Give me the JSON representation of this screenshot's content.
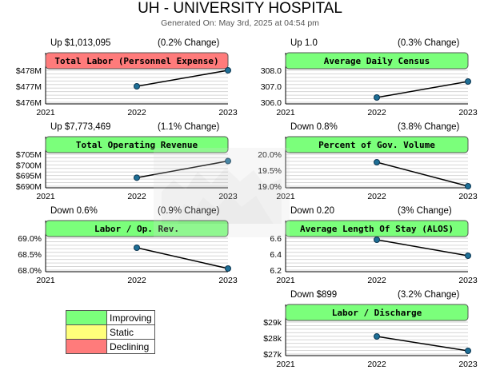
{
  "header": {
    "title": "UH - UNIVERSITY HOSPITAL",
    "generated": "Generated On: May 3rd, 2025 at 04:54 pm"
  },
  "colors": {
    "improving": "#7bff7b",
    "static": "#ffff7b",
    "declining": "#ff7b7b"
  },
  "legend": [
    {
      "label": "Improving",
      "color": "#7bff7b"
    },
    {
      "label": "Static",
      "color": "#ffff7b"
    },
    {
      "label": "Declining",
      "color": "#ff7b7b"
    }
  ],
  "chart_data": [
    {
      "type": "line",
      "title": "Total Labor (Personnel Expense)",
      "status": "declining",
      "change": "Up $1,013,095",
      "change_pct": "(0.2% Change)",
      "x": [
        "2021",
        "2022",
        "2023"
      ],
      "values": [
        null,
        477.0,
        478.0
      ],
      "yticks": [
        "$478M",
        "$477M",
        "$476M"
      ],
      "ytick_values": [
        478,
        477,
        476
      ],
      "ylim": [
        476,
        478
      ]
    },
    {
      "type": "line",
      "title": "Average Daily Census",
      "status": "improving",
      "change": "Up 1.0",
      "change_pct": "(0.3% Change)",
      "x": [
        "2021",
        "2022",
        "2023"
      ],
      "values": [
        null,
        306.3,
        307.3
      ],
      "yticks": [
        "308.0",
        "307.0",
        "306.0"
      ],
      "ytick_values": [
        308,
        307,
        306
      ],
      "ylim": [
        306,
        308
      ]
    },
    {
      "type": "line",
      "title": "Total Operating Revenue",
      "status": "improving",
      "change": "Up $7,773,469",
      "change_pct": "(1.1% Change)",
      "x": [
        "2021",
        "2022",
        "2023"
      ],
      "values": [
        null,
        694.0,
        701.8
      ],
      "yticks": [
        "$705M",
        "$700M",
        "$695M",
        "$690M"
      ],
      "ytick_values": [
        705,
        700,
        695,
        690
      ],
      "ylim": [
        690,
        705
      ]
    },
    {
      "type": "line",
      "title": "Percent of Gov. Volume",
      "status": "improving",
      "change": "Down 0.8%",
      "change_pct": "(3.8% Change)",
      "x": [
        "2021",
        "2022",
        "2023"
      ],
      "values": [
        null,
        19.75,
        19.0
      ],
      "yticks": [
        "20.0%",
        "19.5%",
        "19.0%"
      ],
      "ytick_values": [
        20.0,
        19.5,
        19.0
      ],
      "ylim": [
        19.0,
        20.0
      ]
    },
    {
      "type": "line",
      "title": "Labor / Op. Rev.",
      "status": "improving",
      "change": "Down 0.6%",
      "change_pct": "(0.9% Change)",
      "x": [
        "2021",
        "2022",
        "2023"
      ],
      "values": [
        null,
        68.7,
        68.05
      ],
      "yticks": [
        "69.0%",
        "68.5%",
        "68.0%"
      ],
      "ytick_values": [
        69.0,
        68.5,
        68.0
      ],
      "ylim": [
        68.0,
        69.0
      ]
    },
    {
      "type": "line",
      "title": "Average Length Of Stay (ALOS)",
      "status": "improving",
      "change": "Down 0.20",
      "change_pct": "(3% Change)",
      "x": [
        "2021",
        "2022",
        "2023"
      ],
      "values": [
        null,
        6.58,
        6.38
      ],
      "yticks": [
        "6.6",
        "6.4",
        "6.2"
      ],
      "ytick_values": [
        6.6,
        6.4,
        6.2
      ],
      "ylim": [
        6.2,
        6.6
      ]
    },
    {
      "type": "line",
      "title": "Labor / Discharge",
      "status": "improving",
      "change": "Down $899",
      "change_pct": "(3.2% Change)",
      "x": [
        "2021",
        "2022",
        "2023"
      ],
      "values": [
        null,
        28.1,
        27.2
      ],
      "yticks": [
        "$29k",
        "$28k",
        "$27k"
      ],
      "ytick_values": [
        29,
        28,
        27
      ],
      "ylim": [
        27,
        29
      ]
    }
  ]
}
